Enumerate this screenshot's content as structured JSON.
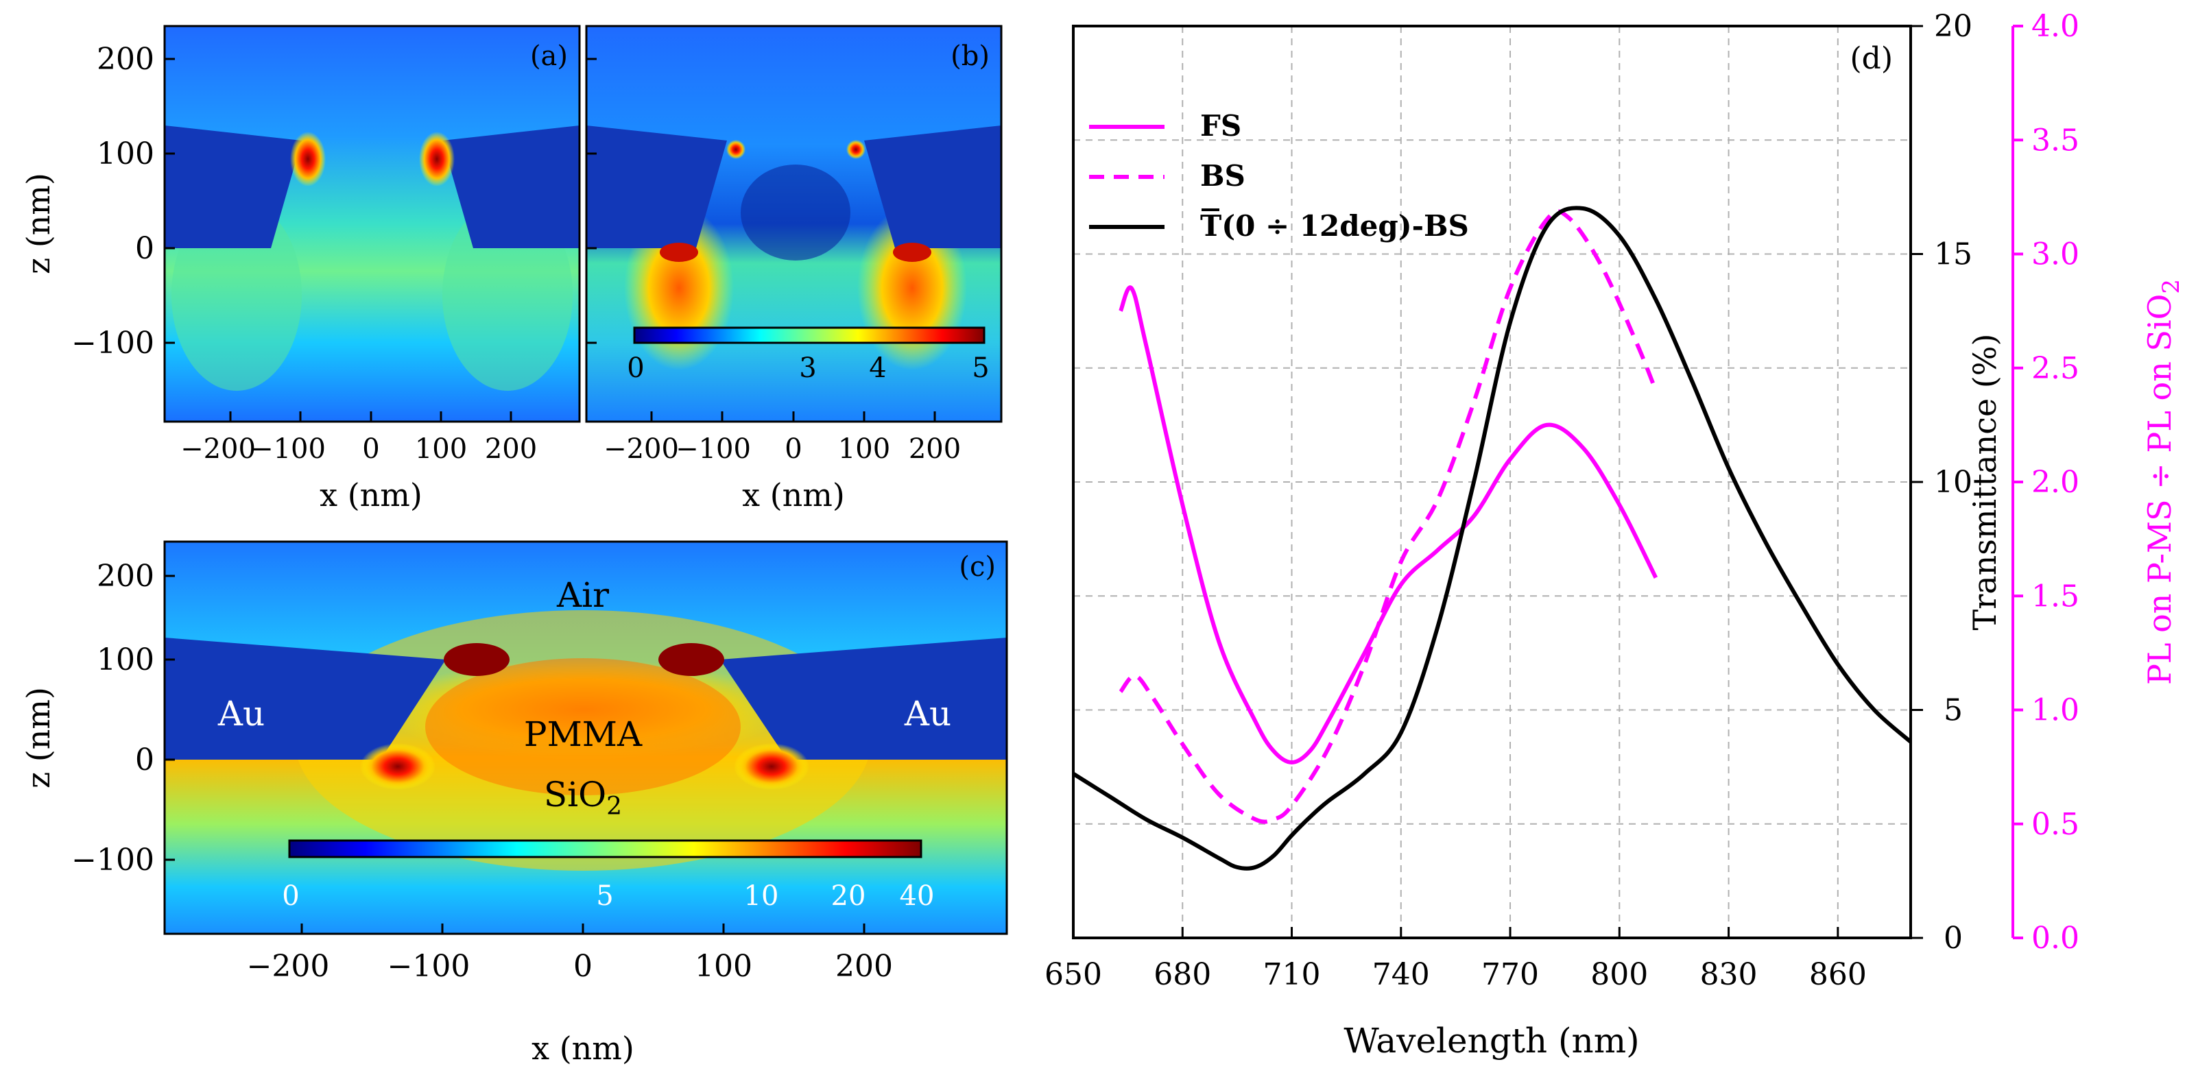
{
  "panels": {
    "a": {
      "tag": "(a)",
      "xlabel": "x (nm)",
      "ylabel": "z (nm)",
      "xticks": [
        "−200",
        "−100",
        "0",
        "100",
        "200"
      ],
      "yticks": [
        "200",
        "100",
        "0",
        "−100"
      ]
    },
    "b": {
      "tag": "(b)",
      "xlabel": "x (nm)",
      "xticks": [
        "−200",
        "−100",
        "0",
        "100",
        "200"
      ],
      "colorbar_ticks": [
        "0",
        "3",
        "4",
        "5"
      ]
    },
    "c": {
      "tag": "(c)",
      "xlabel": "x (nm)",
      "ylabel": "z (nm)",
      "xticks": [
        "−200",
        "−100",
        "0",
        "100",
        "200"
      ],
      "yticks": [
        "200",
        "100",
        "0",
        "−100"
      ],
      "colorbar_ticks": [
        "0",
        "5",
        "10",
        "20",
        "40"
      ],
      "labels": {
        "air": "Air",
        "au_left": "Au",
        "au_right": "Au",
        "pmma": "PMMA",
        "sio2_base": "SiO",
        "sio2_sub": "2"
      }
    }
  },
  "chart_data": {
    "type": "line",
    "tag": "(d)",
    "xlabel": "Wavelength (nm)",
    "ylabel_left": "Transmittance (%)",
    "ylabel_right": {
      "base": "PL on P-MS ÷ PL on SiO",
      "sub": "2"
    },
    "xlim": [
      650,
      880
    ],
    "ylim_left": [
      0,
      20
    ],
    "ylim_right": [
      0,
      4.0
    ],
    "xticks": [
      650,
      680,
      710,
      740,
      770,
      800,
      830,
      860
    ],
    "yticks_left": [
      0,
      5,
      10,
      15,
      20
    ],
    "yticks_right": [
      "0.0",
      "0.5",
      "1.0",
      "1.5",
      "2.0",
      "2.5",
      "3.0",
      "3.5",
      "4.0"
    ],
    "grid": true,
    "legend_position": "top-left",
    "colors": {
      "pl": "#ff00ff",
      "transmittance": "#000000",
      "right_axis": "#ff00ff"
    },
    "series": [
      {
        "name": "FS",
        "axis": "right",
        "style": "solid",
        "x": [
          663,
          666,
          670,
          680,
          690,
          700,
          705,
          710,
          715,
          720,
          730,
          740,
          750,
          760,
          770,
          780,
          790,
          800,
          810
        ],
        "y": [
          2.75,
          2.85,
          2.6,
          1.9,
          1.3,
          0.95,
          0.82,
          0.77,
          0.82,
          0.95,
          1.25,
          1.55,
          1.7,
          1.85,
          2.1,
          2.25,
          2.15,
          1.9,
          1.58
        ]
      },
      {
        "name": "BS",
        "axis": "right",
        "style": "dashed",
        "x": [
          663,
          667,
          672,
          680,
          690,
          700,
          705,
          710,
          720,
          730,
          740,
          750,
          760,
          770,
          780,
          786,
          795,
          805,
          810
        ],
        "y": [
          1.08,
          1.15,
          1.05,
          0.85,
          0.63,
          0.52,
          0.52,
          0.58,
          0.83,
          1.2,
          1.65,
          1.92,
          2.35,
          2.85,
          3.15,
          3.16,
          2.95,
          2.6,
          2.4
        ]
      },
      {
        "name": {
          "base": "T",
          "rest": "(0 ÷ 12deg)-BS"
        },
        "axis": "left",
        "style": "solid",
        "x": [
          650,
          660,
          670,
          680,
          690,
          695,
          700,
          705,
          710,
          715,
          720,
          730,
          740,
          750,
          760,
          770,
          780,
          790,
          800,
          810,
          820,
          830,
          840,
          850,
          860,
          870,
          880
        ],
        "y": [
          3.6,
          3.1,
          2.6,
          2.2,
          1.75,
          1.55,
          1.55,
          1.8,
          2.25,
          2.65,
          3.0,
          3.6,
          4.5,
          6.8,
          10.0,
          13.5,
          15.6,
          16.0,
          15.4,
          14.0,
          12.2,
          10.3,
          8.7,
          7.3,
          6.0,
          5.0,
          4.3
        ]
      }
    ]
  }
}
